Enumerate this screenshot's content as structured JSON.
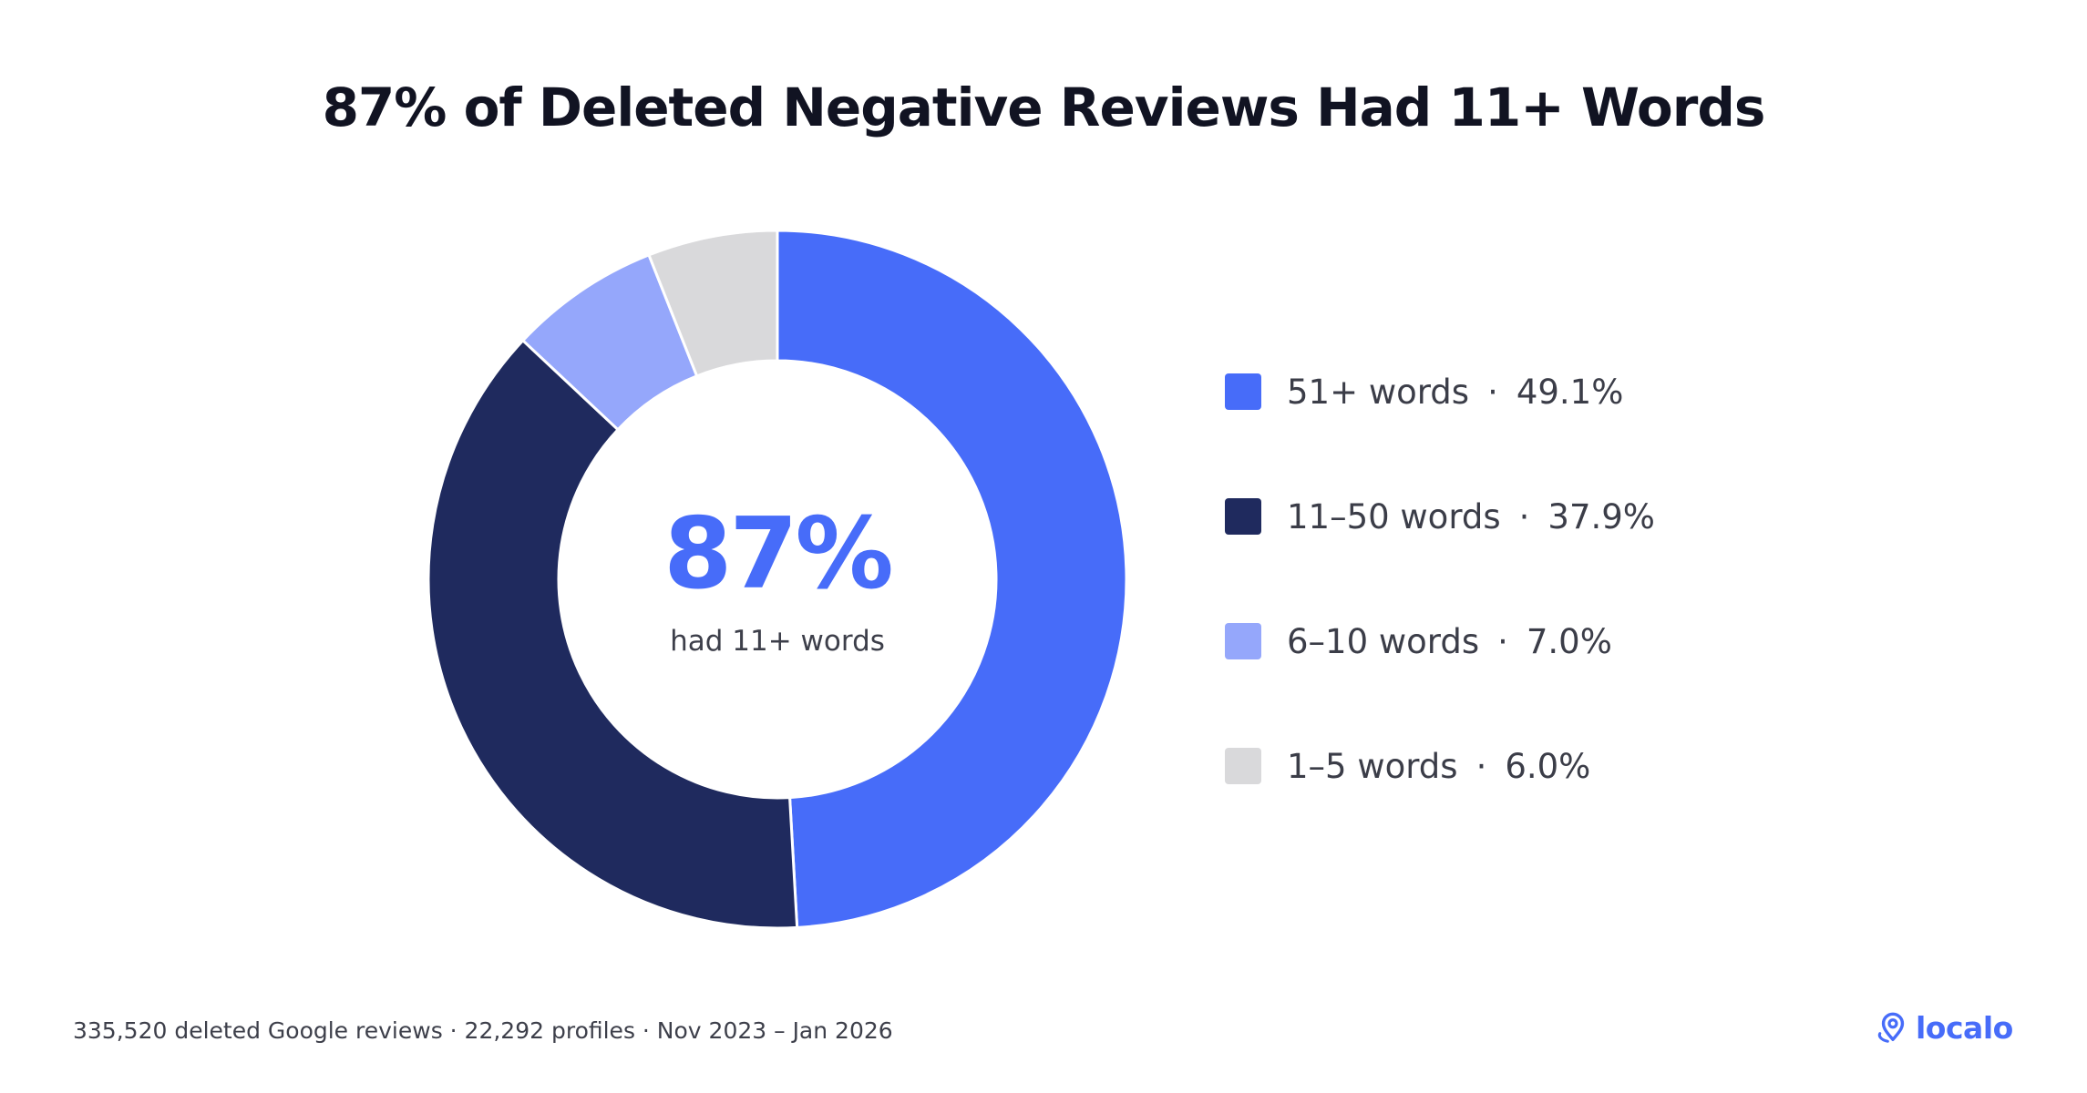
{
  "colors": {
    "accent": "#476cf9",
    "title": "#111322",
    "text": "#3b3d48",
    "slice_separator": "#ffffff"
  },
  "chart_data": {
    "type": "donut",
    "title": "87% of Deleted Negative Reviews Had 11+ Words",
    "center": {
      "value": "87%",
      "caption": "had 11+ words"
    },
    "series": [
      {
        "label": "51+ words",
        "value": 49.1,
        "value_label": "49.1%",
        "color": "#476cf9"
      },
      {
        "label": "11–50 words",
        "value": 37.9,
        "value_label": "37.9%",
        "color": "#1f2a5e"
      },
      {
        "label": "6–10 words",
        "value": 7.0,
        "value_label": "7.0%",
        "color": "#95a7fb"
      },
      {
        "label": "1–5 words",
        "value": 6.0,
        "value_label": "6.0%",
        "color": "#d9d9db"
      }
    ],
    "legend_position": "right",
    "legend_separator": "·"
  },
  "footer": {
    "source": "335,520 deleted Google reviews · 22,292 profiles · Nov 2023 – Jan 2026"
  },
  "brand": {
    "name": "localo",
    "icon": "location-pin-icon"
  }
}
